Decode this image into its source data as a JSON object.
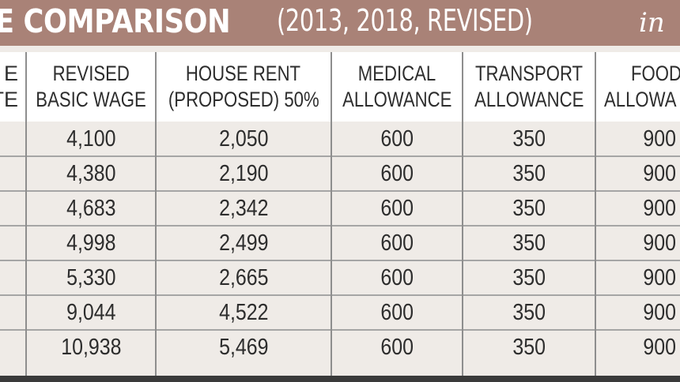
{
  "banner": {
    "title_bold": "E COMPARISON",
    "title_plain": "(2013, 2018, REVISED)",
    "title_italic": "in"
  },
  "headers": [
    {
      "line1": "E",
      "line2": "TE"
    },
    {
      "line1": "REVISED",
      "line2": "BASIC WAGE"
    },
    {
      "line1": "HOUSE RENT",
      "line2": "(PROPOSED) 50%"
    },
    {
      "line1": "MEDICAL",
      "line2": "ALLOWANCE"
    },
    {
      "line1": "TRANSPORT",
      "line2": "ALLOWANCE"
    },
    {
      "line1": "FOOD",
      "line2": "ALLOWA"
    }
  ],
  "rows": [
    [
      "",
      "4,100",
      "2,050",
      "600",
      "350",
      "900"
    ],
    [
      "",
      "4,380",
      "2,190",
      "600",
      "350",
      "900"
    ],
    [
      "",
      "4,683",
      "2,342",
      "600",
      "350",
      "900"
    ],
    [
      "",
      "4,998",
      "2,499",
      "600",
      "350",
      "900"
    ],
    [
      "",
      "5,330",
      "2,665",
      "600",
      "350",
      "900"
    ],
    [
      "",
      "9,044",
      "4,522",
      "600",
      "350",
      "900"
    ],
    [
      "",
      "10,938",
      "5,469",
      "600",
      "350",
      "900"
    ]
  ],
  "colors": {
    "banner": "#a98277",
    "header_bg": "#ffffff",
    "row_bg": "#efebe7",
    "text": "#2d2d2d"
  }
}
